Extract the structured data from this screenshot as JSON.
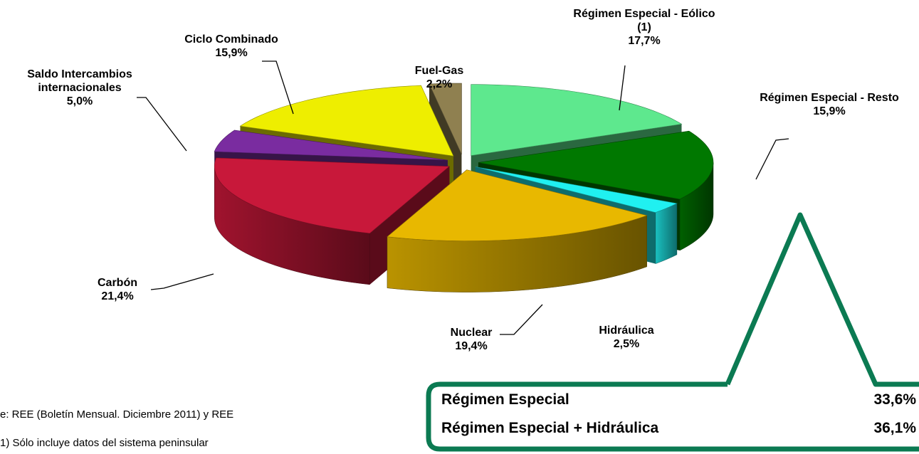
{
  "chart_data": {
    "type": "pie",
    "categories": [
      "Régimen Especial - Eólico (1)",
      "Régimen Especial - Resto",
      "Hidráulica",
      "Nuclear",
      "Carbón",
      "Saldo Intercambios internacionales",
      "Ciclo Combinado",
      "Fuel-Gas"
    ],
    "values": [
      17.7,
      15.9,
      2.5,
      19.4,
      21.4,
      5.0,
      15.9,
      2.2
    ],
    "value_labels": [
      "17,7%",
      "15,9%",
      "2,5%",
      "19,4%",
      "21,4%",
      "5,0%",
      "15,9%",
      "2,2%"
    ],
    "colors": [
      "#5ee88e",
      "#007800",
      "#20f0f0",
      "#e8b800",
      "#c8183a",
      "#7a2ca0",
      "#eeee00",
      "#8f8050"
    ],
    "summary": [
      {
        "name": "Régimen Especial",
        "value": 33.6,
        "value_label": "33,6%"
      },
      {
        "name": "Régimen Especial + Hidráulica",
        "value": 36.1,
        "value_label": "36,1%"
      }
    ],
    "notes": [
      "e: REE (Boletín Mensual.  Diciembre 2011) y REE",
      "1) Sólo incluye datos del sistema peninsular"
    ]
  }
}
